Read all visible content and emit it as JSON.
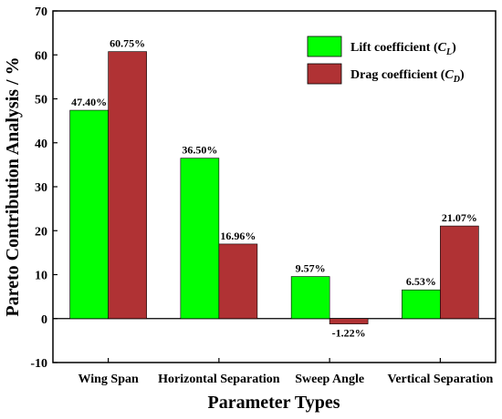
{
  "chart_data": {
    "type": "bar",
    "xlabel": "Parameter Types",
    "ylabel": "Pareto Contribution Analysis / %",
    "ylim": [
      -10,
      70
    ],
    "yticks": [
      -10,
      0,
      10,
      20,
      30,
      40,
      50,
      60,
      70
    ],
    "categories": [
      "Wing Span",
      "Horizontal Separation",
      "Sweep Angle",
      "Vertical Separation"
    ],
    "series": [
      {
        "name": "Lift coefficient (C_L)",
        "legend_main": "Lift coefficient (",
        "legend_sym": "C",
        "legend_sub": "L",
        "color": "#00ff00",
        "values": [
          47.4,
          36.5,
          9.57,
          6.53
        ],
        "labels": [
          "47.40%",
          "36.50%",
          "9.57%",
          "6.53%"
        ]
      },
      {
        "name": "Drag coefficient (C_D)",
        "legend_main": "Drag coefficient  (",
        "legend_sym": "C",
        "legend_sub": "D",
        "color": "#b03234",
        "values": [
          60.75,
          16.96,
          -1.22,
          21.07
        ],
        "labels": [
          "60.75%",
          "16.96%",
          "-1.22%",
          "21.07%"
        ]
      }
    ],
    "legend_position": "top-right",
    "grid": false
  }
}
